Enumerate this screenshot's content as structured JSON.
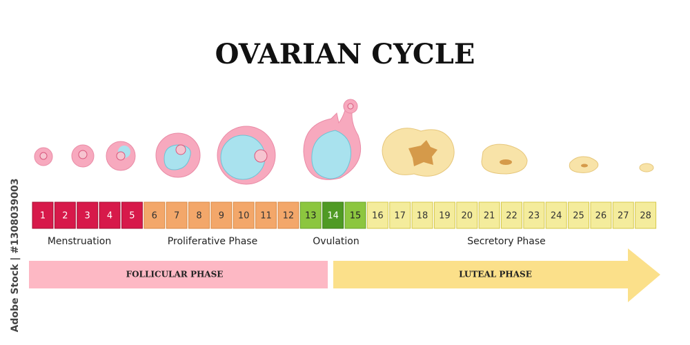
{
  "title": "OVARIAN CYCLE",
  "segments": [
    {
      "days": [
        1,
        2,
        3,
        4,
        5
      ],
      "fill": "#d7194a",
      "border": "#a30f33",
      "text": "#ffffff"
    },
    {
      "days": [
        6,
        7,
        8,
        9,
        10,
        11,
        12
      ],
      "fill": "#f3a76a",
      "border": "#d98a45",
      "text": "#333333"
    },
    {
      "days": [
        13
      ],
      "fill": "#8cc63f",
      "border": "#6aa32a",
      "text": "#222222"
    },
    {
      "days": [
        14
      ],
      "fill": "#4f9a24",
      "border": "#3a7a15",
      "text": "#ffffff"
    },
    {
      "days": [
        15
      ],
      "fill": "#8cc63f",
      "border": "#6aa32a",
      "text": "#222222"
    },
    {
      "days": [
        16,
        17,
        18,
        19,
        20,
        21,
        22,
        23,
        24,
        25,
        26,
        27,
        28
      ],
      "fill": "#f4ec9c",
      "border": "#d6c84a",
      "text": "#333333"
    }
  ],
  "phase_labels": [
    "Menstruation",
    "Proliferative Phase",
    "Ovulation",
    "Secretory Phase"
  ],
  "bars": [
    "FOLLICULAR PHASE",
    "LUTEAL PHASE"
  ],
  "watermark": "Adobe Stock | #1308039003"
}
